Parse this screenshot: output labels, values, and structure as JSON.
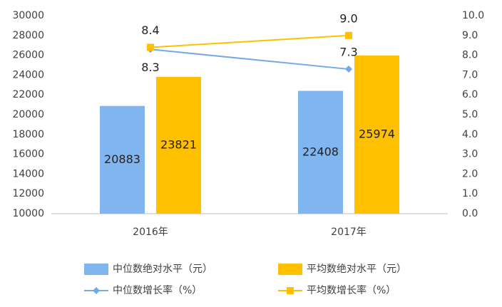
{
  "chart_data": {
    "type": "bar",
    "categories": [
      "2016年",
      "2017年"
    ],
    "series": [
      {
        "name": "中位数绝对水平（元）",
        "color": "#80b5f0",
        "values": [
          20883,
          22408
        ]
      },
      {
        "name": "平均数绝对水平（元）",
        "color": "#ffc000",
        "values": [
          23821,
          25974
        ]
      },
      {
        "name": "中位数增长率（%）",
        "type": "line",
        "axis": "y2",
        "marker": "diamond",
        "color": "#72a9e6",
        "values": [
          8.3,
          7.3
        ],
        "value_labels": [
          "8.3",
          "7.3"
        ]
      },
      {
        "name": "平均数增长率（%）",
        "type": "line",
        "axis": "y2",
        "marker": "square",
        "color": "#ffc000",
        "values": [
          8.4,
          9.0
        ],
        "value_labels": [
          "8.4",
          "9.0"
        ]
      }
    ],
    "ylim": [
      10000,
      30000
    ],
    "yticks": [
      10000,
      12000,
      14000,
      16000,
      18000,
      20000,
      22000,
      24000,
      26000,
      28000,
      30000
    ],
    "y2lim": [
      0,
      10
    ],
    "y2ticks": [
      {
        "value": 0,
        "label": "0.0"
      },
      {
        "value": 1,
        "label": "1.0"
      },
      {
        "value": 2,
        "label": "2.0"
      },
      {
        "value": 3,
        "label": "3.0"
      },
      {
        "value": 4,
        "label": "4.0"
      },
      {
        "value": 5,
        "label": "5.0"
      },
      {
        "value": 6,
        "label": "6.0"
      },
      {
        "value": 7,
        "label": "7.0"
      },
      {
        "value": 8,
        "label": "8.0"
      },
      {
        "value": 9,
        "label": "9.0"
      },
      {
        "value": 10,
        "label": "10.0"
      }
    ],
    "grid": false,
    "legend": "bottom"
  }
}
